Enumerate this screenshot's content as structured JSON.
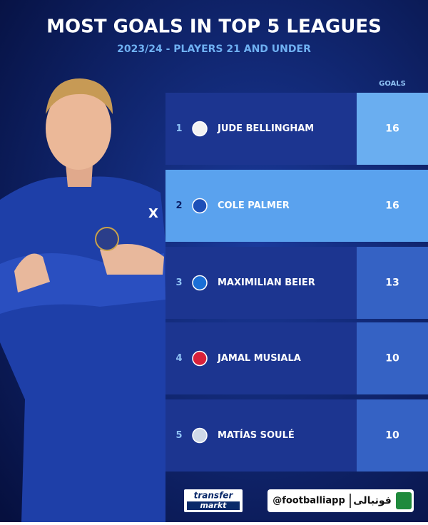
{
  "header": {
    "title": "MOST GOALS IN TOP 5 LEAGUES",
    "subtitle": "2023/24 - PLAYERS 21 AND UNDER"
  },
  "table": {
    "column_header": "GOALS",
    "rows": [
      {
        "rank": "1",
        "player": "JUDE BELLINGHAM",
        "goals": "16"
      },
      {
        "rank": "2",
        "player": "COLE PALMER",
        "goals": "16"
      },
      {
        "rank": "3",
        "player": "MAXIMILIAN BEIER",
        "goals": "13"
      },
      {
        "rank": "4",
        "player": "JAMAL MUSIALA",
        "goals": "10"
      },
      {
        "rank": "5",
        "player": "MATÍAS SOULÉ",
        "goals": "10"
      }
    ]
  },
  "footer": {
    "logo_top": "transfer",
    "logo_bottom": "markt",
    "handle": "@footballiapp",
    "brand": "فوتبالی"
  }
}
